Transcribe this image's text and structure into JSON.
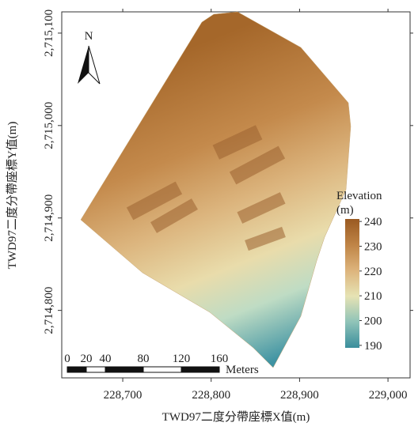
{
  "map": {
    "x_axis_title": "TWD97二度分帶座標X值(m)",
    "y_axis_title": "TWD97二度分帶座標Y值(m)",
    "xlim": [
      228631,
      229025
    ],
    "ylim": [
      2714727,
      2715123
    ],
    "xticks": [
      {
        "value": 228700,
        "label": "228,700"
      },
      {
        "value": 228800,
        "label": "228,800"
      },
      {
        "value": 228900,
        "label": "228,900"
      },
      {
        "value": 229000,
        "label": "229,000"
      }
    ],
    "yticks": [
      {
        "value": 2714800,
        "label": "2,714,800"
      },
      {
        "value": 2714900,
        "label": "2,714,900"
      },
      {
        "value": 2715000,
        "label": "2,715,000"
      },
      {
        "value": 2715100,
        "label": "2,715,100"
      }
    ],
    "north_label": "N",
    "legend": {
      "title": [
        "Elevation",
        "(m)"
      ],
      "lim": [
        189,
        241
      ],
      "ticks": [
        190,
        200,
        210,
        220,
        230,
        240
      ],
      "colors": [
        "#3a8e9c",
        "#8fc3b8",
        "#e6e3b4",
        "#ddb47c",
        "#bf8446",
        "#9a5a22"
      ]
    },
    "scale_bar": {
      "ticks": [
        0,
        20,
        40,
        80,
        120,
        160
      ],
      "unit": "Meters"
    }
  }
}
